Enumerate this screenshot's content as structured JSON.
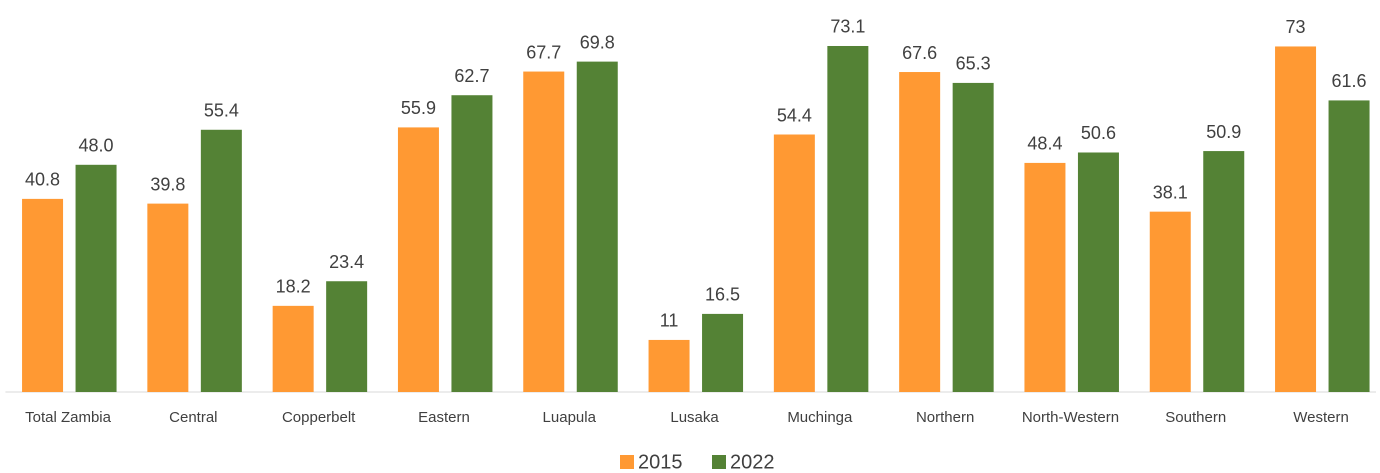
{
  "chart_data": {
    "type": "bar",
    "categories": [
      "Total Zambia",
      "Central",
      "Copperbelt",
      "Eastern",
      "Luapula",
      "Lusaka",
      "Muchinga",
      "Northern",
      "North-Western",
      "Southern",
      "Western"
    ],
    "series": [
      {
        "name": "2015",
        "color": "#ff9933",
        "values": [
          40.8,
          39.8,
          18.2,
          55.9,
          67.7,
          11,
          54.4,
          67.6,
          48.4,
          38.1,
          73
        ],
        "value_labels": [
          "40.8",
          "39.8",
          "18.2",
          "55.9",
          "67.7",
          "11",
          "54.4",
          "67.6",
          "48.4",
          "38.1",
          "73"
        ]
      },
      {
        "name": "2022",
        "color": "#548235",
        "values": [
          48.0,
          55.4,
          23.4,
          62.7,
          69.8,
          16.5,
          73.1,
          65.3,
          50.6,
          50.9,
          61.6
        ],
        "value_labels": [
          "48.0",
          "55.4",
          "23.4",
          "62.7",
          "69.8",
          "16.5",
          "73.1",
          "65.3",
          "50.6",
          "50.9",
          "61.6"
        ]
      }
    ],
    "ylim": [
      0,
      75
    ],
    "legend": "bottom"
  }
}
